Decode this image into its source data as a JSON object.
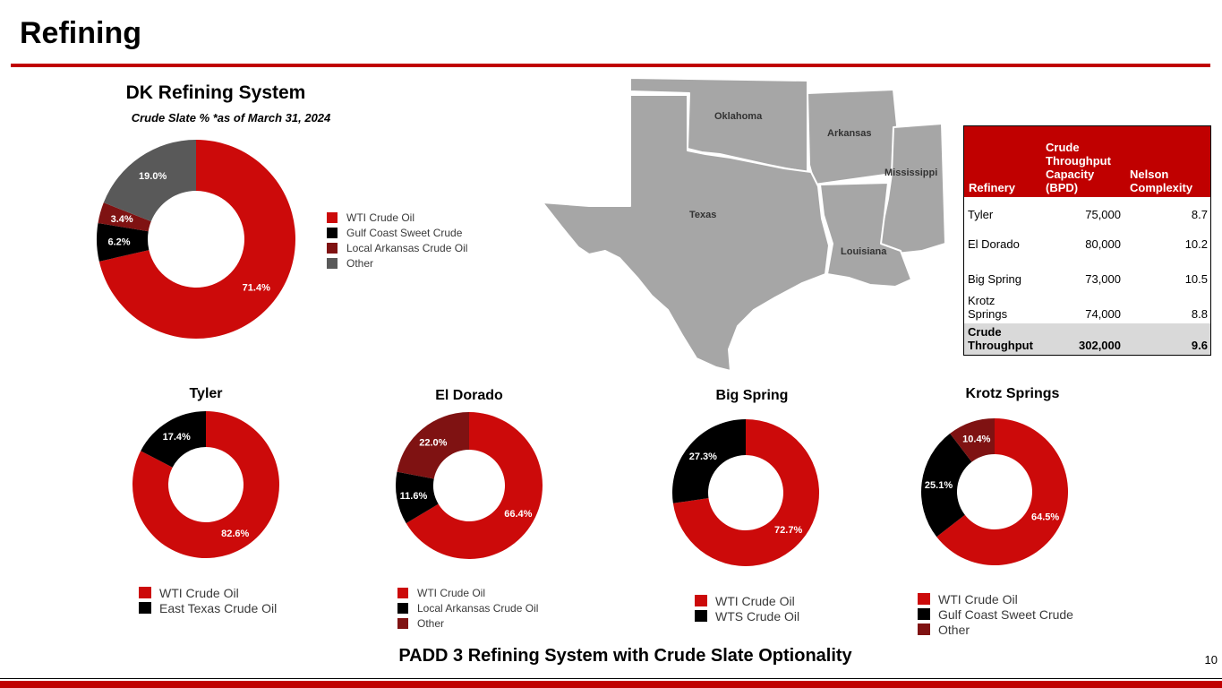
{
  "page": {
    "title": "Refining",
    "bottom_caption": "PADD 3 Refining System with Crude Slate Optionality",
    "page_number": "10"
  },
  "colors": {
    "red": "#c00000",
    "slice_red": "#cc0a0a",
    "black": "#000000",
    "dark_red": "#7f1212",
    "gray": "#595959",
    "map_gray": "#a6a6a6",
    "table_total_bg": "#d9d9d9"
  },
  "map": {
    "labels": {
      "oklahoma": "Oklahoma",
      "arkansas": "Arkansas",
      "mississippi": "Mississippi",
      "texas": "Texas",
      "louisiana": "Louisiana"
    }
  },
  "table": {
    "headers": {
      "refinery": "Refinery",
      "capacity_lines": [
        "Crude",
        "Throughput",
        "Capacity",
        "(BPD)"
      ],
      "nelson_lines": [
        "Nelson",
        "Complexity"
      ]
    },
    "rows": [
      {
        "name_lines": [
          "Tyler"
        ],
        "capacity": "75,000",
        "nelson": "8.7"
      },
      {
        "name_lines": [
          "El Dorado"
        ],
        "capacity": "80,000",
        "nelson": "10.2"
      },
      {
        "name_lines": [
          "Big Spring"
        ],
        "capacity": "73,000",
        "nelson": "10.5"
      },
      {
        "name_lines": [
          "Krotz",
          "Springs"
        ],
        "capacity": "74,000",
        "nelson": "8.8"
      }
    ],
    "total": {
      "name_lines": [
        "Crude",
        "Throughput"
      ],
      "capacity": "302,000",
      "nelson": "9.6"
    }
  },
  "chart_data": [
    {
      "type": "pie",
      "id": "system",
      "title": "DK Refining System",
      "subtitle": "Crude Slate % *as of March 31, 2024",
      "slices": [
        {
          "label": "WTI Crude Oil",
          "value": 71.4,
          "display": "71.4%",
          "color": "#cc0a0a"
        },
        {
          "label": "Gulf Coast Sweet Crude",
          "value": 6.2,
          "display": "6.2%",
          "color": "#000000"
        },
        {
          "label": "Local Arkansas Crude Oil",
          "value": 3.4,
          "display": "3.4%",
          "color": "#7f1212"
        },
        {
          "label": "Other",
          "value": 19.0,
          "display": "19.0%",
          "color": "#595959"
        }
      ]
    },
    {
      "type": "pie",
      "id": "tyler",
      "title": "Tyler",
      "slices": [
        {
          "label": "WTI Crude Oil",
          "value": 82.6,
          "display": "82.6%",
          "color": "#cc0a0a"
        },
        {
          "label": "East Texas Crude Oil",
          "value": 17.4,
          "display": "17.4%",
          "color": "#000000"
        }
      ]
    },
    {
      "type": "pie",
      "id": "eldorado",
      "title": "El Dorado",
      "slices": [
        {
          "label": "WTI Crude Oil",
          "value": 66.4,
          "display": "66.4%",
          "color": "#cc0a0a"
        },
        {
          "label": "Local Arkansas Crude Oil",
          "value": 11.6,
          "display": "11.6%",
          "color": "#000000"
        },
        {
          "label": "Other",
          "value": 22.0,
          "display": "22.0%",
          "color": "#7f1212"
        }
      ]
    },
    {
      "type": "pie",
      "id": "bigspring",
      "title": "Big Spring",
      "slices": [
        {
          "label": "WTI Crude Oil",
          "value": 72.7,
          "display": "72.7%",
          "color": "#cc0a0a"
        },
        {
          "label": "WTS Crude Oil",
          "value": 27.3,
          "display": "27.3%",
          "color": "#000000"
        }
      ]
    },
    {
      "type": "pie",
      "id": "krotz",
      "title": "Krotz Springs",
      "slices": [
        {
          "label": "WTI Crude Oil",
          "value": 64.5,
          "display": "64.5%",
          "color": "#cc0a0a"
        },
        {
          "label": "Gulf Coast Sweet Crude",
          "value": 25.1,
          "display": "25.1%",
          "color": "#000000"
        },
        {
          "label": "Other",
          "value": 10.4,
          "display": "10.4%",
          "color": "#7f1212"
        }
      ]
    }
  ]
}
